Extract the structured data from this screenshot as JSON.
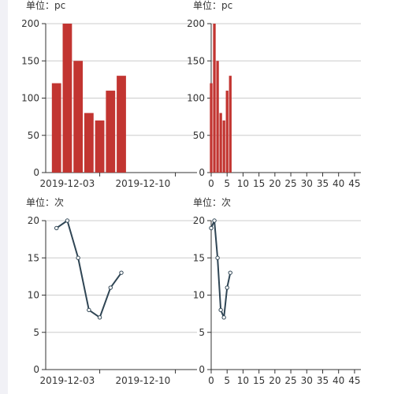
{
  "colors": {
    "bar": "#c23531",
    "line": "#2f4554",
    "axis": "#333333",
    "grid": "#cccccc",
    "text": "#333333",
    "point_fill": "#ffffff"
  },
  "chart_data": [
    {
      "type": "bar",
      "x_axis_type": "time",
      "unit_label": "单位：pc",
      "x": [
        "2019-12-02",
        "2019-12-03",
        "2019-12-04",
        "2019-12-05",
        "2019-12-06",
        "2019-12-07",
        "2019-12-08"
      ],
      "values": [
        120,
        200,
        150,
        80,
        70,
        110,
        130
      ],
      "xlim": [
        "2019-12-01",
        "2019-12-15"
      ],
      "x_tick_labels": [
        {
          "value": "2019-12-03",
          "label": "2019-12-03"
        },
        {
          "value": "2019-12-10",
          "label": "2019-12-10"
        }
      ],
      "ylim": [
        0,
        200
      ],
      "y_ticks": [
        0,
        50,
        100,
        150,
        200
      ],
      "grid": true
    },
    {
      "type": "bar",
      "x_axis_type": "value",
      "unit_label": "单位：pc",
      "x": [
        0,
        1,
        2,
        3,
        4,
        5,
        6
      ],
      "values": [
        120,
        200,
        150,
        80,
        70,
        110,
        130
      ],
      "xlim": [
        0,
        47
      ],
      "x_ticks": [
        0,
        5,
        10,
        15,
        20,
        25,
        30,
        35,
        40,
        45
      ],
      "ylim": [
        0,
        200
      ],
      "y_ticks": [
        0,
        50,
        100,
        150,
        200
      ],
      "grid": true
    },
    {
      "type": "line",
      "x_axis_type": "time",
      "unit_label": "单位：次",
      "x": [
        "2019-12-02",
        "2019-12-03",
        "2019-12-04",
        "2019-12-05",
        "2019-12-06",
        "2019-12-07",
        "2019-12-08"
      ],
      "values": [
        19,
        20,
        15,
        8,
        7,
        11,
        13
      ],
      "xlim": [
        "2019-12-01",
        "2019-12-15"
      ],
      "x_tick_labels": [
        {
          "value": "2019-12-03",
          "label": "2019-12-03"
        },
        {
          "value": "2019-12-10",
          "label": "2019-12-10"
        }
      ],
      "ylim": [
        0,
        20
      ],
      "y_ticks": [
        0,
        5,
        10,
        15,
        20
      ],
      "grid": true
    },
    {
      "type": "line",
      "x_axis_type": "value",
      "unit_label": "单位：次",
      "x": [
        0,
        1,
        2,
        3,
        4,
        5,
        6
      ],
      "values": [
        19,
        20,
        15,
        8,
        7,
        11,
        13
      ],
      "xlim": [
        0,
        47
      ],
      "x_ticks": [
        0,
        5,
        10,
        15,
        20,
        25,
        30,
        35,
        40,
        45
      ],
      "ylim": [
        0,
        20
      ],
      "y_ticks": [
        0,
        5,
        10,
        15,
        20
      ],
      "grid": true
    }
  ]
}
